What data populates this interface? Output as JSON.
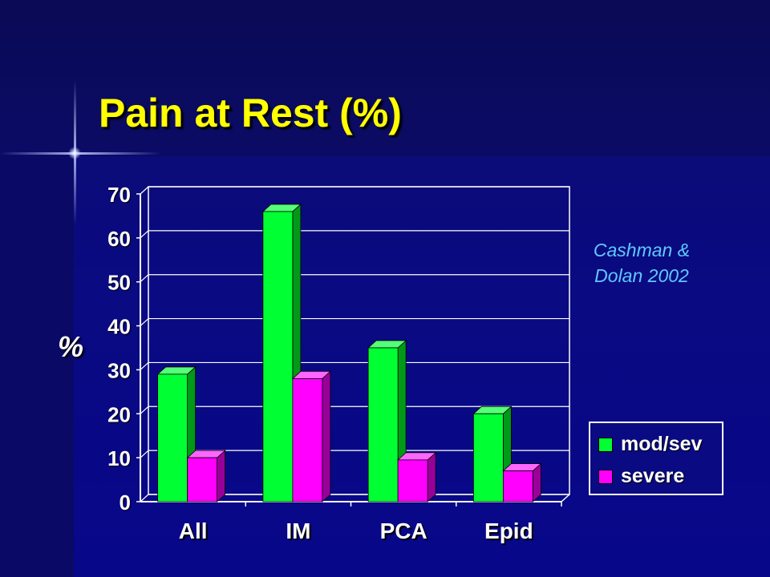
{
  "slide": {
    "title": "Pain at Rest (%)",
    "ylabel_symbol": "%",
    "citation_line1": "Cashman &",
    "citation_line2": "Dolan 2002"
  },
  "colors": {
    "mod_sev": "#00ff33",
    "severe": "#ff00ff",
    "axis": "#ffffff",
    "title": "#ffff00",
    "citation": "#5fc8ff"
  },
  "chart_data": {
    "type": "bar",
    "categories": [
      "All",
      "IM",
      "PCA",
      "Epid"
    ],
    "series": [
      {
        "name": "mod/sev",
        "values": [
          29,
          66,
          35,
          20
        ]
      },
      {
        "name": "severe",
        "values": [
          10,
          28,
          9.5,
          7
        ]
      }
    ],
    "ylim": [
      0,
      70
    ],
    "yticks": [
      0,
      10,
      20,
      30,
      40,
      50,
      60,
      70
    ],
    "ylabel": "%",
    "grid": true,
    "legend": "right",
    "three_d": true
  }
}
